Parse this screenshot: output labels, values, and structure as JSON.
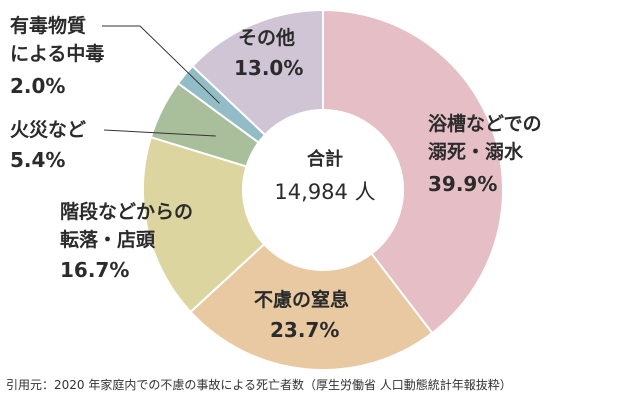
{
  "chart_data": {
    "type": "pie",
    "donut": true,
    "center_label": "合計",
    "center_total": "14,984 人",
    "start_angle_deg": 0,
    "slices": [
      {
        "line1": "浴槽などでの",
        "line2": "溺死・溺水",
        "value": 39.9,
        "value_label": "39.9%",
        "color": "#e6bfc6"
      },
      {
        "line1": "不慮の窒息",
        "line2": "",
        "value": 23.7,
        "value_label": "23.7%",
        "color": "#e8c9a2"
      },
      {
        "line1": "階段などからの",
        "line2": "転落・店頭",
        "value": 16.7,
        "value_label": "16.7%",
        "color": "#ddd5a0"
      },
      {
        "line1": "火災など",
        "line2": "",
        "value": 5.4,
        "value_label": "5.4%",
        "color": "#a9be9b"
      },
      {
        "line1": "有毒物質",
        "line2": "による中毒",
        "value": 2.0,
        "value_label": "2.0%",
        "color": "#92bcc6"
      },
      {
        "line1": "その他",
        "line2": "",
        "value": 13.0,
        "value_label": "13.0%",
        "color": "#cfc5d5"
      }
    ]
  },
  "footer": "引用元：2020 年家庭内での不慮の事故による死亡者数（厚生労働省 人口動態統計年報抜粋）",
  "colors": {
    "leader_line": "#333333",
    "separator": "#ffffff"
  }
}
